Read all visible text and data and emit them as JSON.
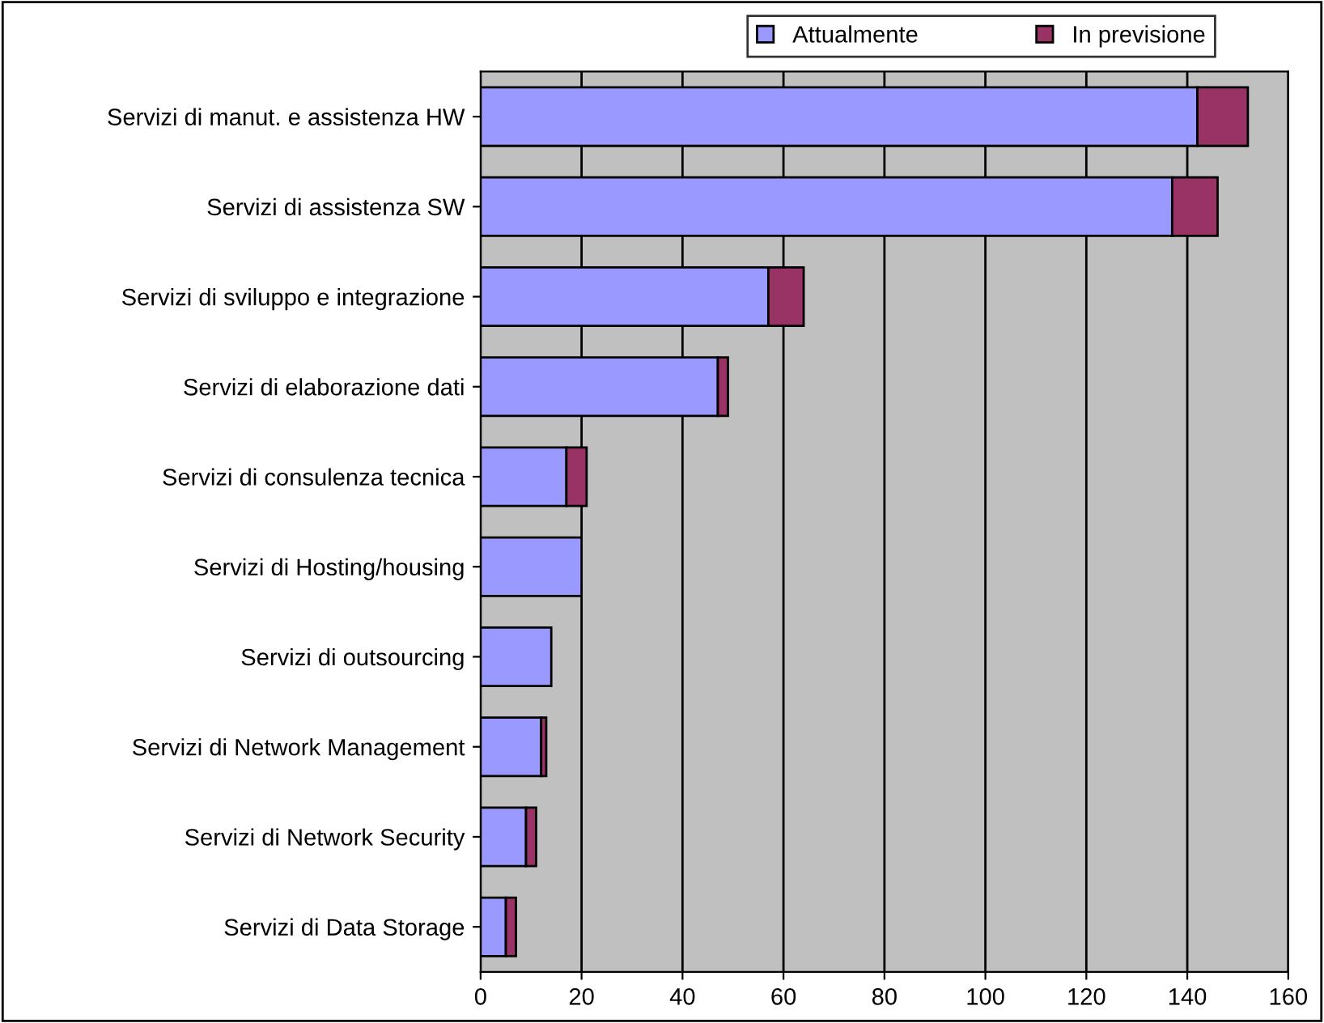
{
  "chart_data": {
    "type": "bar",
    "orientation": "horizontal",
    "stacked": true,
    "categories": [
      "Servizi di manut. e assistenza HW",
      "Servizi di assistenza SW",
      "Servizi di sviluppo e integrazione",
      "Servizi di elaborazione dati",
      "Servizi di consulenza tecnica",
      "Servizi di Hosting/housing",
      "Servizi di outsourcing",
      "Servizi di Network Management",
      "Servizi di Network Security",
      "Servizi di Data Storage"
    ],
    "series": [
      {
        "name": "Attualmente",
        "color": "#9999ff",
        "values": [
          142,
          137,
          57,
          47,
          17,
          20,
          14,
          12,
          9,
          5
        ]
      },
      {
        "name": "In previsione",
        "color": "#993366",
        "values": [
          10,
          9,
          7,
          2,
          4,
          0,
          0,
          1,
          2,
          2
        ]
      }
    ],
    "xlim": [
      0,
      160
    ],
    "xticks": [
      0,
      20,
      40,
      60,
      80,
      100,
      120,
      140,
      160
    ],
    "grid": "x",
    "legend": "top"
  }
}
